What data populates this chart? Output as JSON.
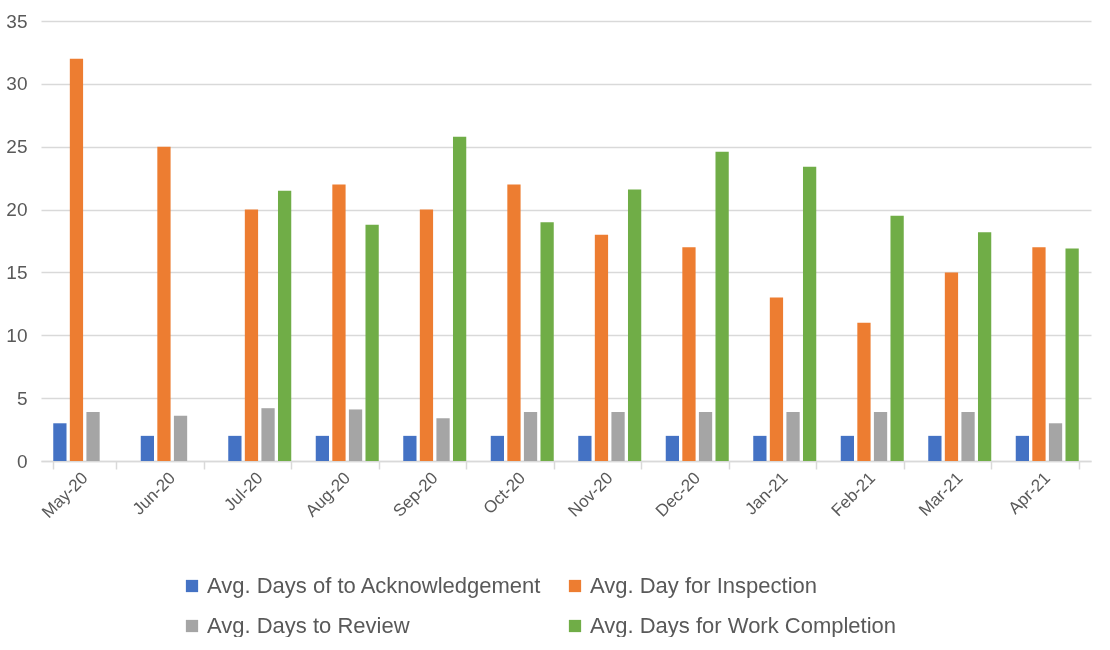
{
  "chart_data": {
    "type": "bar",
    "categories": [
      "May-20",
      "Jun-20",
      "Jul-20",
      "Aug-20",
      "Sep-20",
      "Oct-20",
      "Nov-20",
      "Dec-20",
      "Jan-21",
      "Feb-21",
      "Mar-21",
      "Apr-21"
    ],
    "series": [
      {
        "name": "Avg. Days of to Acknowledgement",
        "color": "#4472c4",
        "values": [
          3,
          2,
          2,
          2,
          2,
          2,
          2,
          2,
          2,
          2,
          2,
          2
        ]
      },
      {
        "name": "Avg. Day for Inspection",
        "color": "#ed7d31",
        "values": [
          32,
          25,
          20,
          22,
          20,
          22,
          18,
          17,
          13,
          11,
          15,
          17
        ]
      },
      {
        "name": "Avg. Days to Review",
        "color": "#a5a5a5",
        "values": [
          3.9,
          3.6,
          4.2,
          4.1,
          3.4,
          3.9,
          3.9,
          3.9,
          3.9,
          3.9,
          3.9,
          3.0
        ]
      },
      {
        "name": "Avg. Days for Work Completion",
        "color": "#70ad47",
        "values": [
          null,
          null,
          21.5,
          18.8,
          25.8,
          19,
          21.6,
          24.6,
          23.4,
          19.5,
          18.2,
          16.9
        ]
      }
    ],
    "ylim": [
      0,
      35
    ],
    "yticks": [
      0,
      5,
      10,
      15,
      20,
      25,
      30,
      35
    ],
    "grid": "y",
    "legend": "bottom"
  }
}
